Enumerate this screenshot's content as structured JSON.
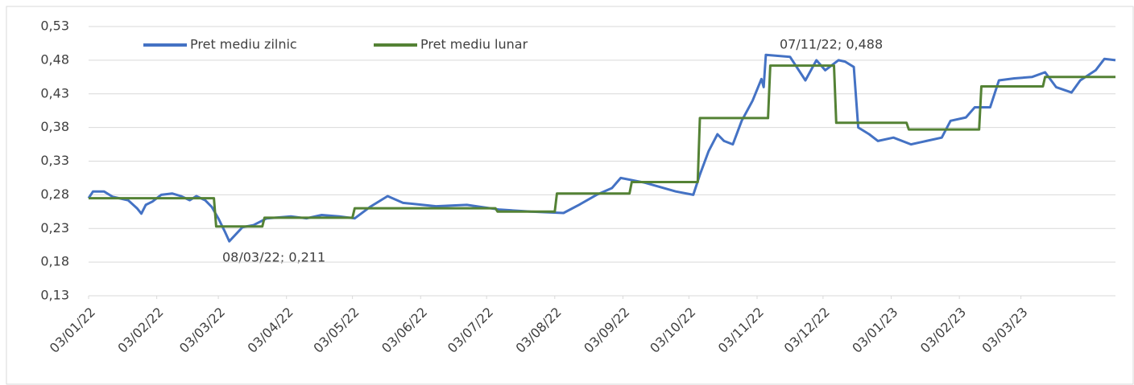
{
  "chart_data": {
    "type": "line",
    "xlim": [
      "03/01/22",
      "15/04/23"
    ],
    "xticks": [
      "03/01/22",
      "03/02/22",
      "03/03/22",
      "03/04/22",
      "03/05/22",
      "03/06/22",
      "03/07/22",
      "03/08/22",
      "03/09/22",
      "03/10/22",
      "03/11/22",
      "03/12/22",
      "03/01/23",
      "03/02/23",
      "03/03/23"
    ],
    "ylim": [
      0.13,
      0.53
    ],
    "yticks": [
      {
        "value": 0.13,
        "label": "0,13"
      },
      {
        "value": 0.18,
        "label": "0,18"
      },
      {
        "value": 0.23,
        "label": "0,23"
      },
      {
        "value": 0.28,
        "label": "0,28"
      },
      {
        "value": 0.33,
        "label": "0,33"
      },
      {
        "value": 0.38,
        "label": "0,38"
      },
      {
        "value": 0.43,
        "label": "0,43"
      },
      {
        "value": 0.48,
        "label": "0,48"
      },
      {
        "value": 0.53,
        "label": "0,53"
      }
    ],
    "grid": true,
    "legend": "top-left",
    "series": [
      {
        "name": "Pret mediu zilnic",
        "color": "#4472c4",
        "x": [
          "03/01/22",
          "05/01/22",
          "10/01/22",
          "14/01/22",
          "21/01/22",
          "25/01/22",
          "27/01/22",
          "29/01/22",
          "01/02/22",
          "05/02/22",
          "10/02/22",
          "14/02/22",
          "18/02/22",
          "21/02/22",
          "25/02/22",
          "28/02/22",
          "03/03/22",
          "06/03/22",
          "08/03/22",
          "14/03/22",
          "19/03/22",
          "25/03/22",
          "05/04/22",
          "12/04/22",
          "19/04/22",
          "27/04/22",
          "04/05/22",
          "11/05/22",
          "19/05/22",
          "26/05/22",
          "10/06/22",
          "24/06/22",
          "09/07/22",
          "23/07/22",
          "07/08/22",
          "14/08/22",
          "22/08/22",
          "29/08/22",
          "02/09/22",
          "13/09/22",
          "27/09/22",
          "05/10/22",
          "08/10/22",
          "12/10/22",
          "16/10/22",
          "19/10/22",
          "23/10/22",
          "27/10/22",
          "01/11/22",
          "05/11/22",
          "06/11/22",
          "07/11/22",
          "18/11/22",
          "25/11/22",
          "30/11/22",
          "04/12/22",
          "10/12/22",
          "13/12/22",
          "17/12/22",
          "19/12/22",
          "24/12/22",
          "28/12/22",
          "04/01/23",
          "12/01/23",
          "19/01/23",
          "26/01/23",
          "30/01/23",
          "06/02/23",
          "10/02/23",
          "17/02/23",
          "21/02/23",
          "28/02/23",
          "08/03/23",
          "14/03/23",
          "19/03/23",
          "26/03/23",
          "30/03/23",
          "06/04/23",
          "10/04/23",
          "15/04/23"
        ],
        "values": [
          0.275,
          0.285,
          0.285,
          0.277,
          0.272,
          0.26,
          0.252,
          0.265,
          0.27,
          0.28,
          0.282,
          0.278,
          0.272,
          0.278,
          0.272,
          0.262,
          0.245,
          0.225,
          0.211,
          0.232,
          0.235,
          0.245,
          0.248,
          0.245,
          0.25,
          0.248,
          0.245,
          0.262,
          0.278,
          0.268,
          0.263,
          0.265,
          0.258,
          0.255,
          0.253,
          0.265,
          0.28,
          0.29,
          0.305,
          0.298,
          0.285,
          0.28,
          0.31,
          0.345,
          0.37,
          0.36,
          0.355,
          0.39,
          0.42,
          0.452,
          0.44,
          0.488,
          0.485,
          0.45,
          0.48,
          0.465,
          0.48,
          0.478,
          0.47,
          0.38,
          0.37,
          0.36,
          0.365,
          0.355,
          0.36,
          0.365,
          0.39,
          0.395,
          0.41,
          0.41,
          0.45,
          0.453,
          0.455,
          0.462,
          0.44,
          0.432,
          0.45,
          0.465,
          0.482,
          0.48
        ]
      },
      {
        "name": "Pret mediu lunar",
        "color": "#548235",
        "x": [
          "03/01/22",
          "01/03/22",
          "02/03/22",
          "23/03/22",
          "24/03/22",
          "03/05/22",
          "04/05/22",
          "07/07/22",
          "08/07/22",
          "03/08/22",
          "04/08/22",
          "06/09/22",
          "07/09/22",
          "07/10/22",
          "08/10/22",
          "08/11/22",
          "09/11/22",
          "08/12/22",
          "09/12/22",
          "10/01/23",
          "11/01/23",
          "12/02/23",
          "13/02/23",
          "13/03/23",
          "14/03/23",
          "15/04/23"
        ],
        "values": [
          0.275,
          0.275,
          0.233,
          0.233,
          0.246,
          0.246,
          0.26,
          0.26,
          0.255,
          0.255,
          0.282,
          0.282,
          0.299,
          0.299,
          0.394,
          0.394,
          0.472,
          0.472,
          0.387,
          0.387,
          0.377,
          0.377,
          0.441,
          0.441,
          0.455,
          0.455
        ]
      }
    ],
    "annotations": [
      "08/03/22; 0,211",
      "07/11/22; 0,488"
    ]
  }
}
